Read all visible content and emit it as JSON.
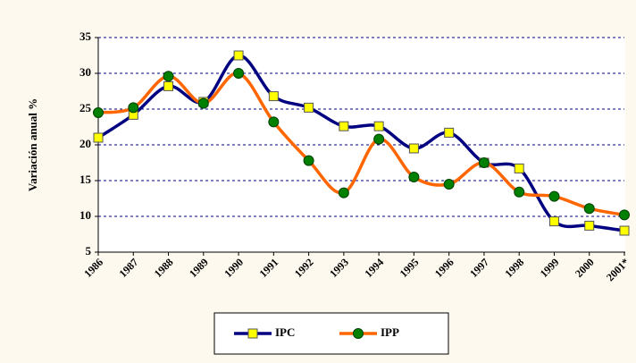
{
  "chart_data": {
    "type": "line",
    "y_label": "Variación anual %",
    "categories": [
      "1986",
      "1987",
      "1988",
      "1989",
      "1990",
      "1991",
      "1992",
      "1993",
      "1994",
      "1995",
      "1996",
      "1997",
      "1998",
      "1999",
      "2000",
      "2001*"
    ],
    "series": [
      {
        "name": "IPC",
        "color": "#000080",
        "marker": "square",
        "marker_color": "#ffff00",
        "values": [
          21,
          24.2,
          28.2,
          26,
          32.5,
          26.8,
          25.2,
          22.6,
          22.6,
          19.5,
          21.7,
          17.5,
          16.7,
          9.3,
          8.7,
          8.0
        ]
      },
      {
        "name": "IPP",
        "color": "#ff6600",
        "marker": "circle",
        "marker_color": "#008000",
        "values": [
          24.5,
          25.2,
          29.6,
          25.8,
          30,
          23.2,
          17.8,
          13.3,
          20.8,
          15.5,
          14.5,
          17.5,
          13.4,
          12.8,
          11.1,
          10.2
        ]
      }
    ],
    "ylim": [
      5,
      35
    ],
    "yticks": [
      5,
      10,
      15,
      20,
      25,
      30,
      35
    ],
    "grid": true,
    "legend": "bottom"
  }
}
